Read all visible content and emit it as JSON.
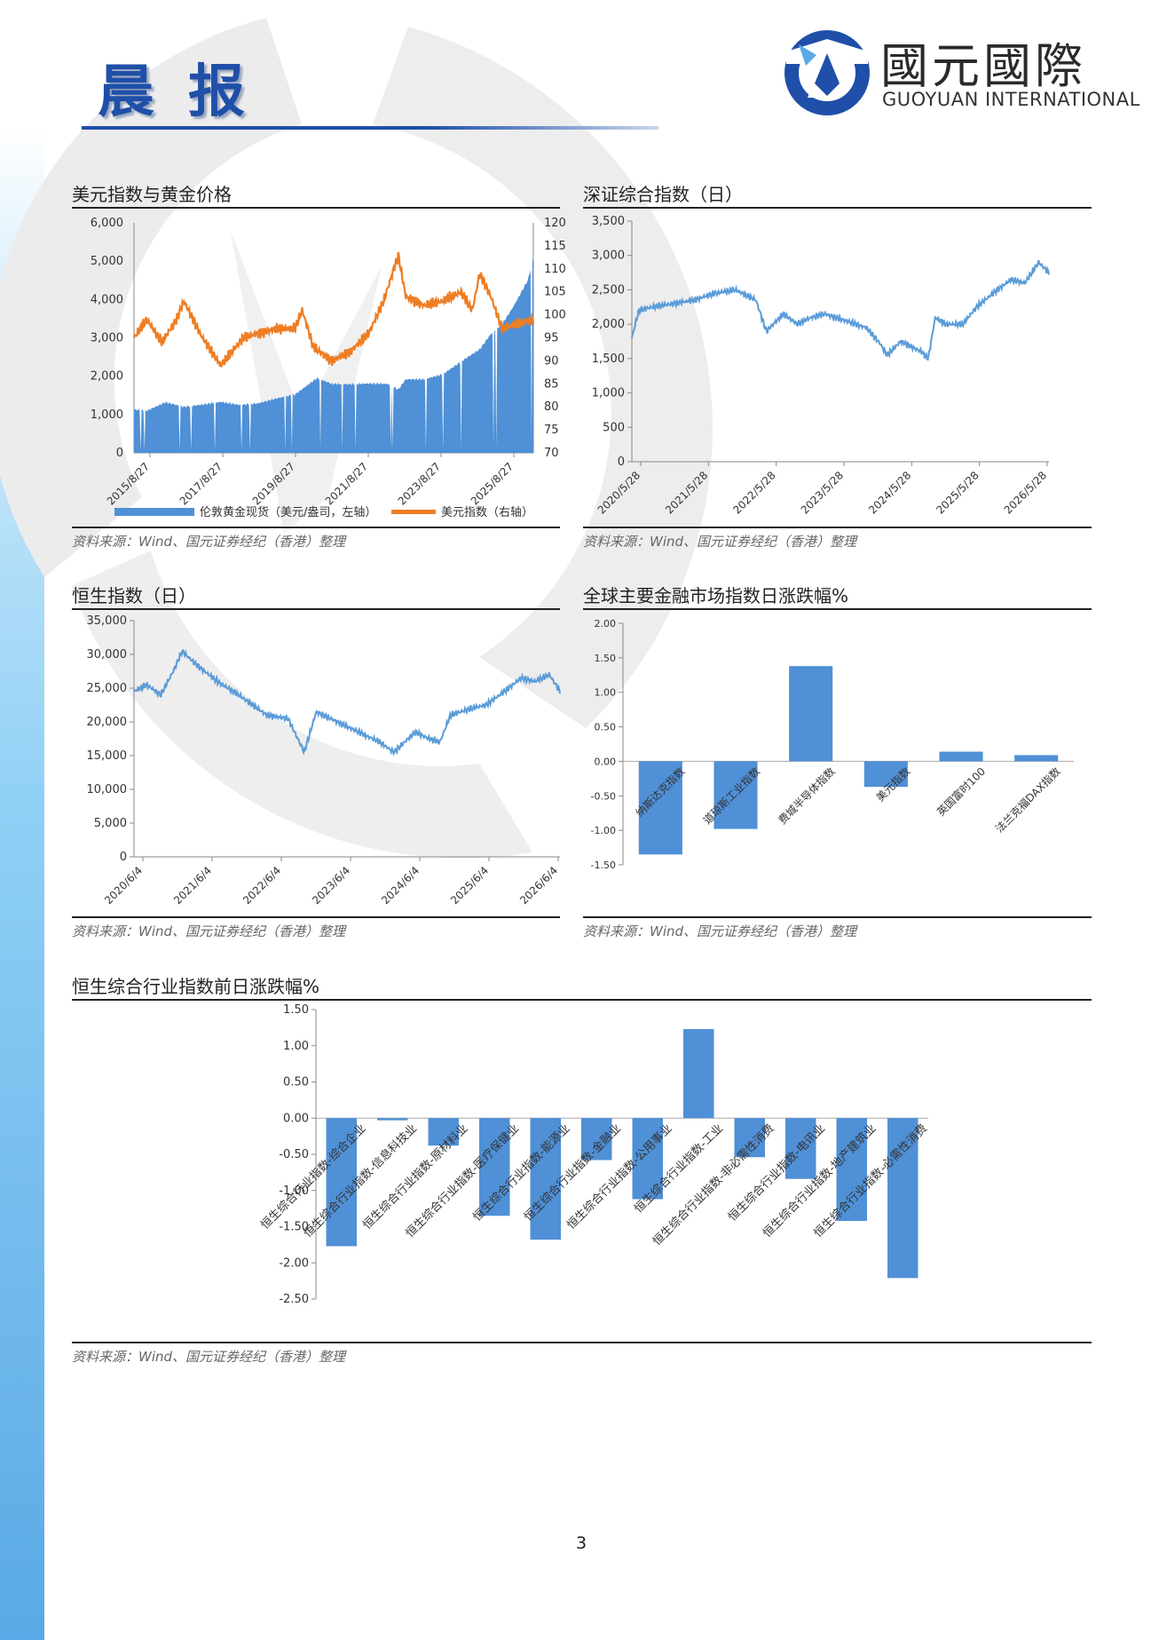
{
  "header": {
    "title": "晨报"
  },
  "logo": {
    "cn": "國元國際",
    "en": "GUOYUAN INTERNATIONAL"
  },
  "page_number": "3",
  "colors": {
    "bar_blue": "#4f90d6",
    "line_blue": "#5a9bd8",
    "line_orange": "#ef7d22",
    "brand": "#1f4fa8"
  },
  "panels": {
    "usd_gold": {
      "title": "美元指数与黄金价格",
      "source": "资料来源：Wind、国元证券经纪（香港）整理"
    },
    "szse": {
      "title": "深证综合指数（日）",
      "source": "资料来源：Wind、国元证券经纪（香港）整理"
    },
    "hsi": {
      "title": "恒生指数（日）",
      "source": "资料来源：Wind、国元证券经纪（香港）整理"
    },
    "global": {
      "title": "全球主要金融市场指数日涨跌幅%",
      "source": "资料来源：Wind、国元证券经纪（香港）整理"
    },
    "hs_sector": {
      "title": "恒生综合行业指数前日涨跌幅%",
      "source": "资料来源：Wind、国元证券经纪（香港）整理"
    }
  },
  "chart_data": [
    {
      "id": "usd_gold",
      "type": "line",
      "x_ticks": [
        "2015/8/27",
        "2017/8/27",
        "2019/8/27",
        "2021/8/27",
        "2023/8/27",
        "2025/8/27"
      ],
      "y_left_ticks": [
        "0",
        "1,000",
        "2,000",
        "3,000",
        "4,000",
        "5,000",
        "6,000"
      ],
      "y_left_lim": [
        0,
        6000
      ],
      "y_right_ticks": [
        "70",
        "75",
        "80",
        "85",
        "90",
        "95",
        "100",
        "105",
        "110",
        "115",
        "120"
      ],
      "y_right_lim": [
        70,
        120
      ],
      "x_lim": [
        2015.65,
        2026.45
      ],
      "series": [
        {
          "name": "伦敦黄金现货（美元/盎司，左轴）",
          "kind": "area",
          "axis": "left",
          "x": [
            2015.65,
            2016.0,
            2016.5,
            2017.0,
            2017.5,
            2018.0,
            2018.5,
            2019.0,
            2019.5,
            2020.0,
            2020.6,
            2021.0,
            2021.5,
            2022.0,
            2022.5,
            2022.8,
            2023.0,
            2023.5,
            2024.0,
            2024.3,
            2024.6,
            2025.0,
            2025.3,
            2025.6,
            2025.9,
            2026.1,
            2026.3,
            2026.45
          ],
          "y": [
            1130,
            1100,
            1320,
            1200,
            1260,
            1330,
            1250,
            1290,
            1420,
            1520,
            1950,
            1800,
            1790,
            1810,
            1800,
            1650,
            1920,
            1920,
            2050,
            2250,
            2450,
            2700,
            3100,
            3350,
            3800,
            4150,
            4500,
            5100
          ]
        },
        {
          "name": "美元指数（右轴）",
          "kind": "line",
          "axis": "right",
          "x": [
            2015.65,
            2016.0,
            2016.4,
            2016.8,
            2017.0,
            2017.5,
            2018.0,
            2018.2,
            2018.6,
            2019.0,
            2019.5,
            2020.0,
            2020.2,
            2020.5,
            2021.0,
            2021.5,
            2022.0,
            2022.4,
            2022.8,
            2023.0,
            2023.5,
            2024.0,
            2024.5,
            2024.8,
            2025.0,
            2025.3,
            2025.6,
            2026.0,
            2026.45
          ],
          "y": [
            95,
            99,
            94,
            99,
            103,
            95,
            89,
            91,
            95,
            96,
            97,
            97,
            101,
            93,
            90,
            92,
            96,
            103,
            113,
            104,
            102,
            103,
            105,
            101,
            109,
            104,
            97,
            98,
            99
          ]
        }
      ],
      "legend": "bottom"
    },
    {
      "id": "szse",
      "type": "line",
      "x_ticks": [
        "2020/5/28",
        "2021/5/28",
        "2022/5/28",
        "2023/5/28",
        "2024/5/28",
        "2025/5/28",
        "2026/5/28"
      ],
      "y_ticks": [
        "0",
        "500",
        "1,000",
        "1,500",
        "2,000",
        "2,500",
        "3,000",
        "3,500"
      ],
      "ylim": [
        0,
        3500
      ],
      "x_lim": [
        2020.4,
        2026.45
      ],
      "series": [
        {
          "name": "",
          "x": [
            2020.4,
            2020.5,
            2020.7,
            2021.0,
            2021.3,
            2021.6,
            2021.9,
            2022.2,
            2022.35,
            2022.6,
            2022.8,
            2023.0,
            2023.2,
            2023.5,
            2023.8,
            2024.0,
            2024.1,
            2024.3,
            2024.6,
            2024.7,
            2024.8,
            2024.95,
            2025.2,
            2025.4,
            2025.7,
            2025.9,
            2026.1,
            2026.3,
            2026.45
          ],
          "y": [
            1800,
            2200,
            2250,
            2300,
            2350,
            2450,
            2500,
            2350,
            1900,
            2150,
            2000,
            2100,
            2150,
            2050,
            1950,
            1720,
            1550,
            1750,
            1600,
            1500,
            2100,
            2000,
            2000,
            2250,
            2500,
            2650,
            2600,
            2900,
            2750
          ]
        }
      ]
    },
    {
      "id": "hsi",
      "type": "line",
      "x_ticks": [
        "2020/6/4",
        "2021/6/4",
        "2022/6/4",
        "2023/6/4",
        "2024/6/4",
        "2025/6/4",
        "2026/6/4"
      ],
      "y_ticks": [
        "0",
        "5,000",
        "10,000",
        "15,000",
        "20,000",
        "25,000",
        "30,000",
        "35,000"
      ],
      "ylim": [
        0,
        35000
      ],
      "x_lim": [
        2020.42,
        2026.45
      ],
      "series": [
        {
          "name": "",
          "x": [
            2020.42,
            2020.6,
            2020.8,
            2021.0,
            2021.1,
            2021.3,
            2021.6,
            2021.9,
            2022.1,
            2022.3,
            2022.6,
            2022.83,
            2023.0,
            2023.3,
            2023.6,
            2023.9,
            2024.1,
            2024.4,
            2024.6,
            2024.75,
            2024.9,
            2025.2,
            2025.4,
            2025.6,
            2025.9,
            2026.1,
            2026.3,
            2026.45
          ],
          "y": [
            24500,
            25500,
            24000,
            28000,
            30500,
            28500,
            26000,
            24000,
            22500,
            21000,
            20500,
            15500,
            21500,
            20000,
            18500,
            17000,
            15500,
            18500,
            17500,
            17000,
            21000,
            22000,
            22500,
            24000,
            26500,
            26000,
            27000,
            24500
          ]
        }
      ]
    },
    {
      "id": "global",
      "type": "bar",
      "categories": [
        "纳斯达克指数",
        "道琼斯工业指数",
        "费城半导体指数",
        "美元指数",
        "英国富时100",
        "法兰克福DAX指数"
      ],
      "values": [
        -1.35,
        -0.98,
        1.38,
        -0.37,
        0.14,
        0.09
      ],
      "y_ticks": [
        "-1.50",
        "-1.00",
        "-0.50",
        "0.00",
        "0.50",
        "1.00",
        "1.50",
        "2.00"
      ],
      "ylim": [
        -1.5,
        2.0
      ]
    },
    {
      "id": "hs_sector",
      "type": "bar",
      "categories": [
        "恒生综合行业指数-综合企业",
        "恒生综合行业指数-信息科技业",
        "恒生综合行业指数-原材料业",
        "恒生综合行业指数-医疗保健业",
        "恒生综合行业指数-能源业",
        "恒生综合行业指数-金融业",
        "恒生综合行业指数-公用事业",
        "恒生综合行业指数-工业",
        "恒生综合行业指数-非必需性消费",
        "恒生综合行业指数-电讯业",
        "恒生综合行业指数-地产建筑业",
        "恒生综合行业指数-必需性消费"
      ],
      "values": [
        -1.77,
        -0.03,
        -0.38,
        -1.35,
        -1.68,
        -0.58,
        -1.12,
        1.23,
        -0.54,
        -0.84,
        -1.42,
        -2.21
      ],
      "y_ticks": [
        "-2.50",
        "-2.00",
        "-1.50",
        "-1.00",
        "-0.50",
        "0.00",
        "0.50",
        "1.00",
        "1.50"
      ],
      "ylim": [
        -2.5,
        1.5
      ]
    }
  ]
}
